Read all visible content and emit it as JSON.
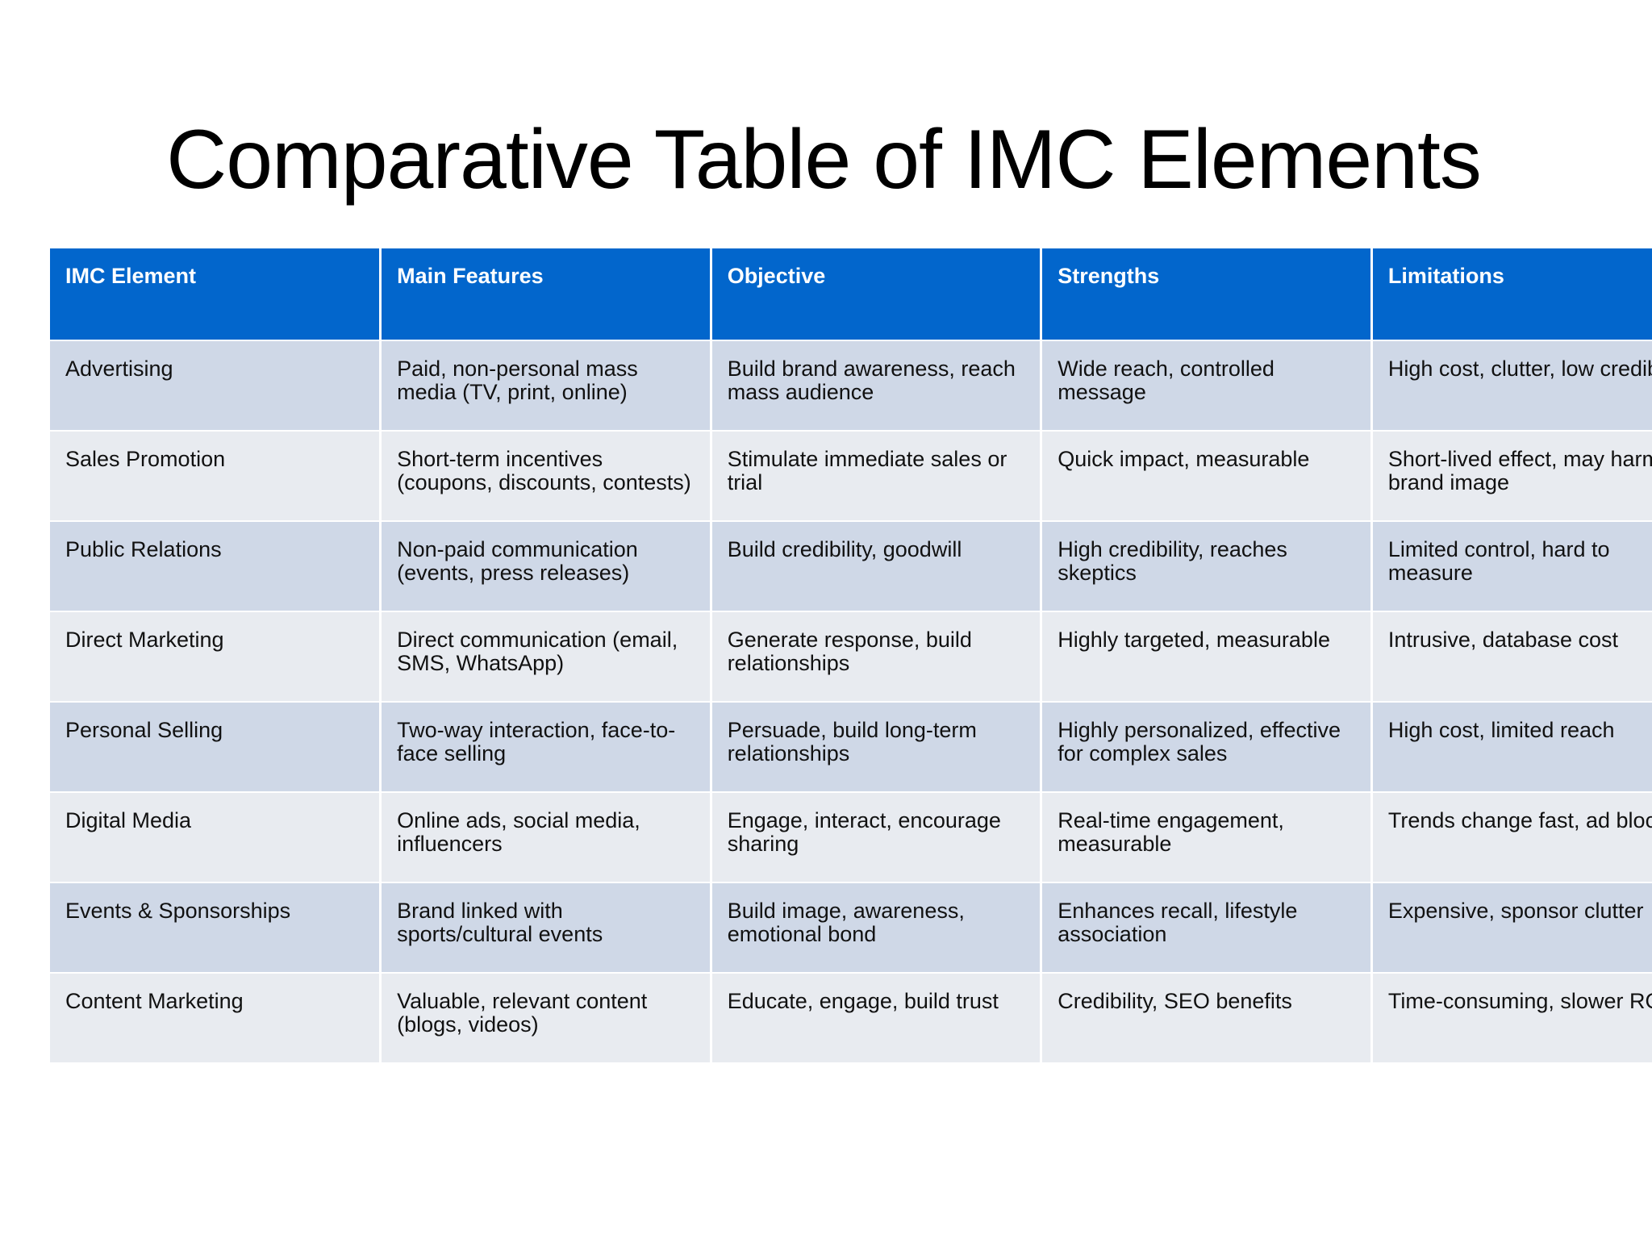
{
  "title": "Comparative Table of IMC Elements",
  "table": {
    "headers": [
      "IMC Element",
      "Main Features",
      "Objective",
      "Strengths",
      "Limitations"
    ],
    "rows": [
      [
        "Advertising",
        "Paid, non-personal mass media (TV, print, online)",
        "Build brand awareness, reach mass audience",
        "Wide reach, controlled message",
        "High cost, clutter, low credib"
      ],
      [
        "Sales Promotion",
        "Short-term incentives (coupons, discounts, contests)",
        "Stimulate immediate sales or trial",
        "Quick impact, measurable",
        "Short-lived effect, may harm brand image"
      ],
      [
        "Public Relations",
        "Non-paid communication (events, press releases)",
        "Build credibility, goodwill",
        "High credibility, reaches skeptics",
        "Limited control, hard to measure"
      ],
      [
        "Direct Marketing",
        "Direct communication (email, SMS, WhatsApp)",
        "Generate response, build relationships",
        "Highly targeted, measurable",
        "Intrusive, database cost"
      ],
      [
        "Personal Selling",
        "Two-way interaction, face-to-face selling",
        "Persuade, build long-term relationships",
        "Highly personalized, effective for complex sales",
        "High cost, limited reach"
      ],
      [
        "Digital Media",
        "Online ads, social media, influencers",
        "Engage, interact, encourage sharing",
        "Real-time engagement, measurable",
        "Trends change fast, ad blocke"
      ],
      [
        "Events & Sponsorships",
        "Brand linked with sports/cultural events",
        "Build image, awareness, emotional bond",
        "Enhances recall, lifestyle association",
        "Expensive, sponsor clutter"
      ],
      [
        "Content Marketing",
        "Valuable, relevant content (blogs, videos)",
        "Educate, engage, build trust",
        "Credibility, SEO benefits",
        "Time-consuming, slower ROI"
      ]
    ]
  }
}
